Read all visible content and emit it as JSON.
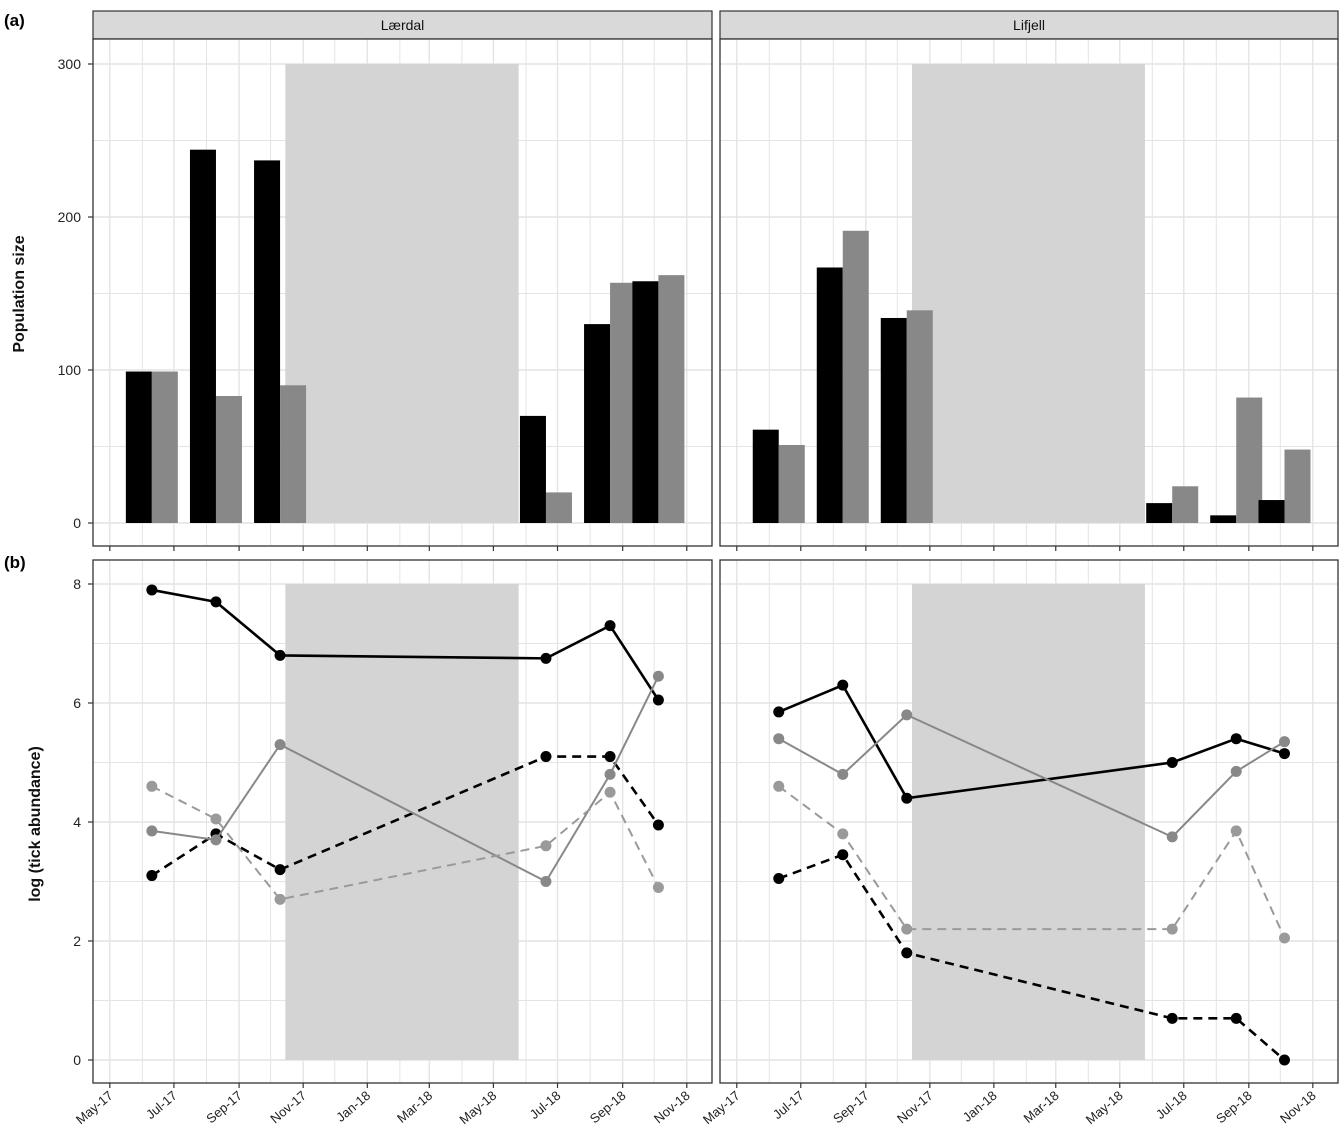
{
  "panel_labels": {
    "a": "(a)",
    "b": "(b)"
  },
  "facets": [
    "Lærdal",
    "Lifjell"
  ],
  "colors": {
    "black": "#000000",
    "grey": "#888888",
    "light_grey": "#9a9a9a",
    "shade": "#d4d4d4",
    "grid": "#e4e4e4",
    "strip": "#d9d9d9"
  },
  "x_axis": {
    "type": "date",
    "ticks": [
      "2017-05-01",
      "2017-07-01",
      "2017-09-01",
      "2017-11-01",
      "2018-01-01",
      "2018-03-01",
      "2018-05-01",
      "2018-07-01",
      "2018-09-01",
      "2018-11-01"
    ],
    "tick_labels": [
      "May-17",
      "Jul-17",
      "Sep-17",
      "Nov-17",
      "Jan-18",
      "Mar-18",
      "May-18",
      "Jul-18",
      "Sep-18",
      "Nov-18"
    ],
    "range": [
      "2017-04-15",
      "2018-11-25"
    ]
  },
  "shaded_period": [
    "2017-10-15",
    "2018-05-25"
  ],
  "chart_data": [
    {
      "type": "bar",
      "panel": "(a)",
      "ylabel": "Population size",
      "ylim": [
        0,
        300
      ],
      "yticks": [
        0,
        100,
        200,
        300
      ],
      "grid": true,
      "facets": [
        {
          "name": "Lærdal",
          "dates": [
            "2017-06-10",
            "2017-08-10",
            "2017-10-10",
            "2018-06-20",
            "2018-08-20",
            "2018-10-05"
          ],
          "series": [
            {
              "color": "#000000",
              "values": [
                99,
                244,
                237,
                70,
                130,
                158
              ]
            },
            {
              "color": "#888888",
              "values": [
                99,
                83,
                90,
                20,
                157,
                162
              ]
            }
          ]
        },
        {
          "name": "Lifjell",
          "dates": [
            "2017-06-10",
            "2017-08-10",
            "2017-10-10",
            "2018-06-20",
            "2018-08-20",
            "2018-10-05"
          ],
          "series": [
            {
              "color": "#000000",
              "values": [
                61,
                167,
                134,
                13,
                5,
                15
              ]
            },
            {
              "color": "#888888",
              "values": [
                51,
                191,
                139,
                24,
                82,
                48
              ]
            }
          ]
        }
      ]
    },
    {
      "type": "line",
      "panel": "(b)",
      "ylabel": "log (tick abundance)",
      "ylim": [
        0,
        8
      ],
      "yticks": [
        0,
        2,
        4,
        6,
        8
      ],
      "grid": true,
      "facets": [
        {
          "name": "Lærdal",
          "series": [
            {
              "color": "#000000",
              "dash": "solid",
              "x": [
                "2017-06-10",
                "2017-08-10",
                "2017-10-10",
                "2018-06-20",
                "2018-08-20",
                "2018-10-05"
              ],
              "y": [
                7.9,
                7.7,
                6.8,
                6.75,
                7.3,
                6.05
              ]
            },
            {
              "color": "#000000",
              "dash": "dashed",
              "x": [
                "2017-06-10",
                "2017-08-10",
                "2017-10-10",
                "2018-06-20",
                "2018-08-20",
                "2018-10-05"
              ],
              "y": [
                3.1,
                3.8,
                3.2,
                5.1,
                5.1,
                3.95
              ]
            },
            {
              "color": "#888888",
              "dash": "solid",
              "x": [
                "2017-06-10",
                "2017-08-10",
                "2017-10-10",
                "2018-06-20",
                "2018-08-20",
                "2018-10-05"
              ],
              "y": [
                3.85,
                3.7,
                5.3,
                3.0,
                4.8,
                6.45
              ]
            },
            {
              "color": "#9a9a9a",
              "dash": "dashed",
              "x": [
                "2017-06-10",
                "2017-08-10",
                "2017-10-10",
                "2018-06-20",
                "2018-08-20",
                "2018-10-05"
              ],
              "y": [
                4.6,
                4.05,
                2.7,
                3.6,
                4.5,
                2.9
              ]
            }
          ]
        },
        {
          "name": "Lifjell",
          "series": [
            {
              "color": "#000000",
              "dash": "solid",
              "x": [
                "2017-06-10",
                "2017-08-10",
                "2017-10-10",
                "2018-06-20",
                "2018-08-20",
                "2018-10-05"
              ],
              "y": [
                5.85,
                6.3,
                4.4,
                5.0,
                5.4,
                5.15
              ]
            },
            {
              "color": "#000000",
              "dash": "dashed",
              "x": [
                "2017-06-10",
                "2017-08-10",
                "2017-10-10",
                "2018-06-20",
                "2018-08-20",
                "2018-10-05"
              ],
              "y": [
                3.05,
                3.45,
                1.8,
                0.7,
                0.7,
                0.0
              ]
            },
            {
              "color": "#888888",
              "dash": "solid",
              "x": [
                "2017-06-10",
                "2017-08-10",
                "2017-10-10",
                "2018-06-20",
                "2018-08-20",
                "2018-10-05"
              ],
              "y": [
                5.4,
                4.8,
                5.8,
                3.75,
                4.85,
                5.35
              ]
            },
            {
              "color": "#9a9a9a",
              "dash": "dashed",
              "x": [
                "2017-06-10",
                "2017-08-10",
                "2017-10-10",
                "2018-06-20",
                "2018-08-20",
                "2018-10-05"
              ],
              "y": [
                4.6,
                3.8,
                2.2,
                2.2,
                3.85,
                2.05
              ]
            }
          ]
        }
      ]
    }
  ]
}
